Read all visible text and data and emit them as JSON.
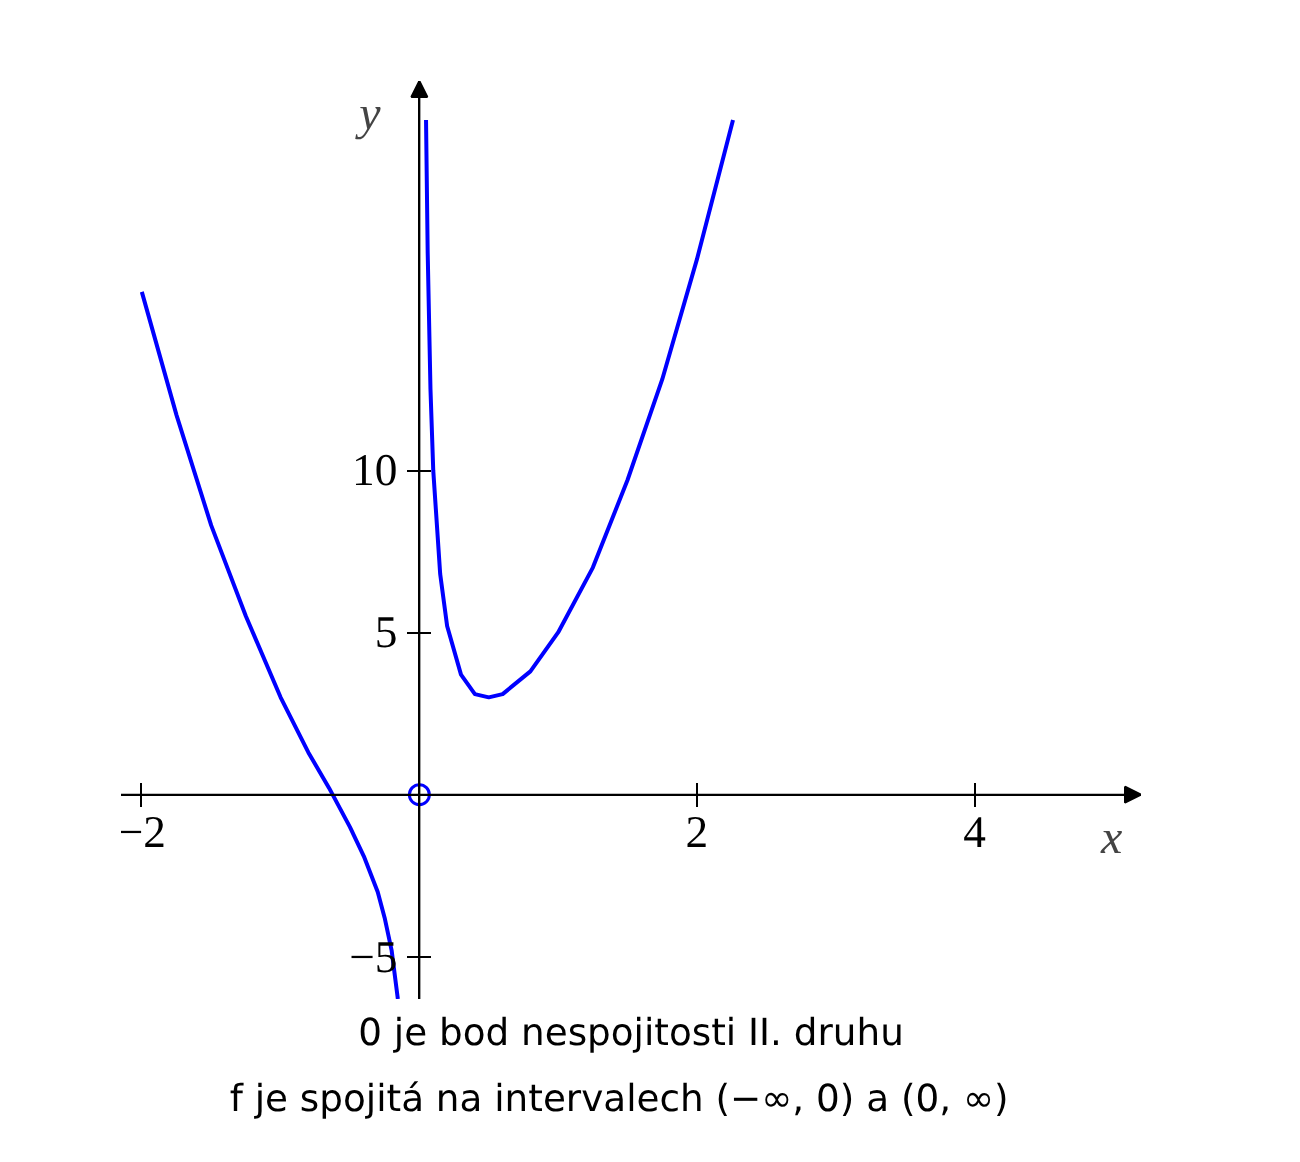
{
  "chart_data": {
    "type": "line",
    "xlabel": "x",
    "ylabel": "y",
    "series": [
      {
        "color": "#0000ff",
        "x": [
          -2,
          -1.75,
          -1.5,
          -1.25,
          -1,
          -0.8,
          -0.65,
          -0.5,
          -0.4,
          -0.3,
          -0.25,
          -0.2,
          -0.155
        ],
        "values": [
          15.5,
          11.7,
          8.3,
          5.5,
          3,
          1.3,
          0.2,
          -1,
          -1.9,
          -3,
          -3.8,
          -4.8,
          -6.3
        ]
      },
      {
        "color": "#0000ff",
        "x": [
          0.048,
          0.06,
          0.08,
          0.1,
          0.15,
          0.2,
          0.3,
          0.4,
          0.5,
          0.6,
          0.8,
          1,
          1.25,
          1.5,
          1.75,
          2,
          2.26
        ],
        "values": [
          20.8,
          16.7,
          12.5,
          10,
          6.8,
          5.2,
          3.7,
          3.1,
          3,
          3.1,
          3.8,
          5,
          7,
          9.7,
          12.8,
          16.5,
          20.8
        ]
      },
      {
        "type": "scatter",
        "color": "#0000ff",
        "x": [
          0
        ],
        "values": [
          0
        ]
      }
    ],
    "xlim": [
      -2.15,
      5.2
    ],
    "ylim": [
      -6.3,
      22
    ],
    "xticks": [
      {
        "value": -2,
        "label": "−2"
      },
      2,
      4
    ],
    "yticks": [
      {
        "value": -5,
        "label": "−5"
      },
      5,
      10
    ],
    "grid": false,
    "annotations": [
      "0 je bod nespojitosti II. druhu",
      "f je spojitá na intervalech (−∞, 0)  a  (0, ∞)"
    ]
  }
}
